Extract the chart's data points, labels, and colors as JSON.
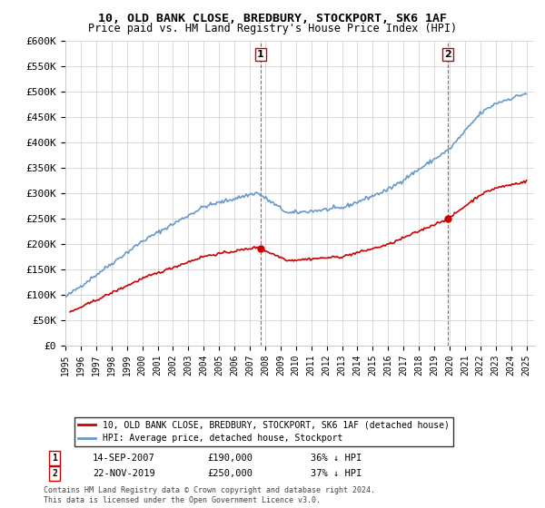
{
  "title": "10, OLD BANK CLOSE, BREDBURY, STOCKPORT, SK6 1AF",
  "subtitle": "Price paid vs. HM Land Registry's House Price Index (HPI)",
  "ylim": [
    0,
    600000
  ],
  "yticks": [
    0,
    50000,
    100000,
    150000,
    200000,
    250000,
    300000,
    350000,
    400000,
    450000,
    500000,
    550000,
    600000
  ],
  "ytick_labels": [
    "£0",
    "£50K",
    "£100K",
    "£150K",
    "£200K",
    "£250K",
    "£300K",
    "£350K",
    "£400K",
    "£450K",
    "£500K",
    "£550K",
    "£600K"
  ],
  "xlim_start": 1995.0,
  "xlim_end": 2025.5,
  "sale1_x": 2007.708,
  "sale1_y": 190000,
  "sale1_label": "1",
  "sale1_date": "14-SEP-2007",
  "sale1_price": "£190,000",
  "sale1_hpi": "36% ↓ HPI",
  "sale2_x": 2019.896,
  "sale2_y": 250000,
  "sale2_label": "2",
  "sale2_date": "22-NOV-2019",
  "sale2_price": "£250,000",
  "sale2_hpi": "37% ↓ HPI",
  "red_color": "#cc0000",
  "blue_color": "#6699cc",
  "legend_red_label": "10, OLD BANK CLOSE, BREDBURY, STOCKPORT, SK6 1AF (detached house)",
  "legend_blue_label": "HPI: Average price, detached house, Stockport",
  "footnote": "Contains HM Land Registry data © Crown copyright and database right 2024.\nThis data is licensed under the Open Government Licence v3.0.",
  "background_color": "#ffffff",
  "grid_color": "#cccccc"
}
